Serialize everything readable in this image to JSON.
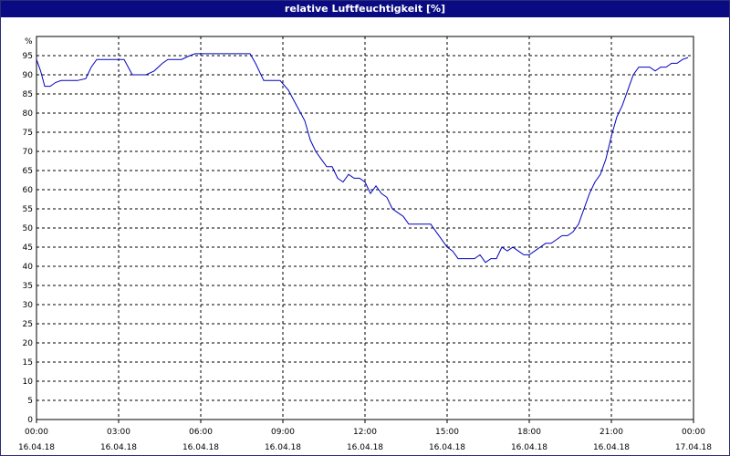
{
  "window": {
    "title": "relative Luftfeuchtigkeit [%]"
  },
  "chart_data": {
    "type": "line",
    "title": "relative Luftfeuchtigkeit [%]",
    "ylabel": "%",
    "xlabel": "",
    "ylim": [
      0,
      100
    ],
    "xlim": [
      0,
      24
    ],
    "grid": true,
    "y_ticks": [
      0,
      5,
      10,
      15,
      20,
      25,
      30,
      35,
      40,
      45,
      50,
      55,
      60,
      65,
      70,
      75,
      80,
      85,
      90,
      95
    ],
    "x_ticks": [
      {
        "hour": 0,
        "time": "00:00",
        "date": "16.04.18"
      },
      {
        "hour": 3,
        "time": "03:00",
        "date": "16.04.18"
      },
      {
        "hour": 6,
        "time": "06:00",
        "date": "16.04.18"
      },
      {
        "hour": 9,
        "time": "09:00",
        "date": "16.04.18"
      },
      {
        "hour": 12,
        "time": "12:00",
        "date": "16.04.18"
      },
      {
        "hour": 15,
        "time": "15:00",
        "date": "16.04.18"
      },
      {
        "hour": 18,
        "time": "18:00",
        "date": "16.04.18"
      },
      {
        "hour": 21,
        "time": "21:00",
        "date": "16.04.18"
      },
      {
        "hour": 24,
        "time": "00:00",
        "date": "17.04.18"
      }
    ],
    "series": [
      {
        "color": "#0000c0",
        "x": [
          0,
          0.15,
          0.3,
          0.5,
          0.7,
          0.9,
          1.2,
          1.5,
          1.8,
          2.0,
          2.2,
          2.5,
          2.8,
          3.0,
          3.2,
          3.35,
          3.5,
          3.7,
          4.0,
          4.3,
          4.6,
          4.8,
          5.0,
          5.3,
          5.6,
          5.8,
          6.0,
          6.3,
          6.7,
          7.0,
          7.4,
          7.8,
          8.0,
          8.3,
          8.6,
          8.9,
          9.2,
          9.5,
          9.8,
          10.0,
          10.2,
          10.4,
          10.6,
          10.8,
          11.0,
          11.2,
          11.4,
          11.6,
          11.8,
          12.0,
          12.2,
          12.4,
          12.6,
          12.8,
          13.0,
          13.2,
          13.4,
          13.6,
          13.8,
          14.0,
          14.2,
          14.4,
          14.6,
          14.8,
          15.0,
          15.2,
          15.4,
          15.6,
          15.8,
          16.0,
          16.2,
          16.4,
          16.6,
          16.8,
          17.0,
          17.2,
          17.4,
          17.6,
          17.8,
          18.0,
          18.2,
          18.4,
          18.6,
          18.8,
          19.0,
          19.2,
          19.4,
          19.6,
          19.8,
          20.0,
          20.2,
          20.4,
          20.6,
          20.8,
          21.0,
          21.2,
          21.4,
          21.6,
          21.8,
          22.0,
          22.2,
          22.4,
          22.6,
          22.8,
          23.0,
          23.2,
          23.4,
          23.6,
          23.8
        ],
        "y": [
          94,
          91,
          87,
          87,
          88,
          88.5,
          88.5,
          88.5,
          89,
          92,
          94,
          94,
          94,
          94,
          94,
          92,
          90,
          90,
          90,
          91,
          93,
          94,
          94,
          94,
          95,
          95.5,
          95.5,
          95.5,
          95.5,
          95.5,
          95.5,
          95.5,
          93,
          88.5,
          88.5,
          88.5,
          86,
          82,
          78,
          73,
          70,
          68,
          66,
          66,
          63,
          62,
          64,
          63,
          63,
          62,
          59,
          61,
          59,
          58,
          55,
          54,
          53,
          51,
          51,
          51,
          51,
          51,
          49,
          47,
          45,
          44,
          42,
          42,
          42,
          42,
          43,
          41,
          42,
          42,
          45,
          44,
          45,
          44,
          43,
          43,
          44,
          45,
          46,
          46,
          47,
          48,
          48,
          49,
          51,
          55,
          59,
          62,
          64,
          68,
          74,
          79,
          82,
          86,
          90,
          92,
          92,
          92,
          91,
          92,
          92,
          93,
          93,
          94,
          94.5
        ]
      }
    ]
  }
}
